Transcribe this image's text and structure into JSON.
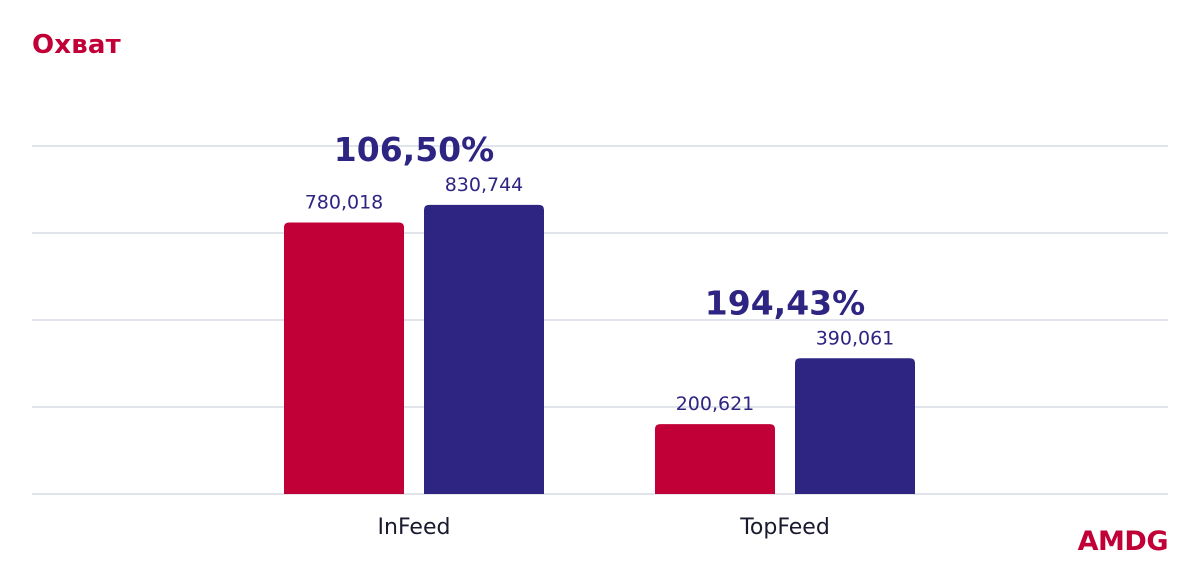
{
  "title": "Охват",
  "logo": "AMDG",
  "colors": {
    "series_1": "#c10037",
    "series_2": "#2e2482",
    "title": "#c10037",
    "grid": "#d8dbe6"
  },
  "chart_data": {
    "type": "bar",
    "categories": [
      "InFeed",
      "TopFeed"
    ],
    "series": [
      {
        "values": [
          780018,
          200621
        ],
        "labels": [
          "780,018",
          "200,621"
        ]
      },
      {
        "values": [
          830744,
          390061
        ],
        "labels": [
          "830,744",
          "390,061"
        ]
      }
    ],
    "annotations": [
      "106,50%",
      "194,43%"
    ],
    "ylim": [
      0,
      1000000
    ],
    "grid": true,
    "legend": "none"
  }
}
